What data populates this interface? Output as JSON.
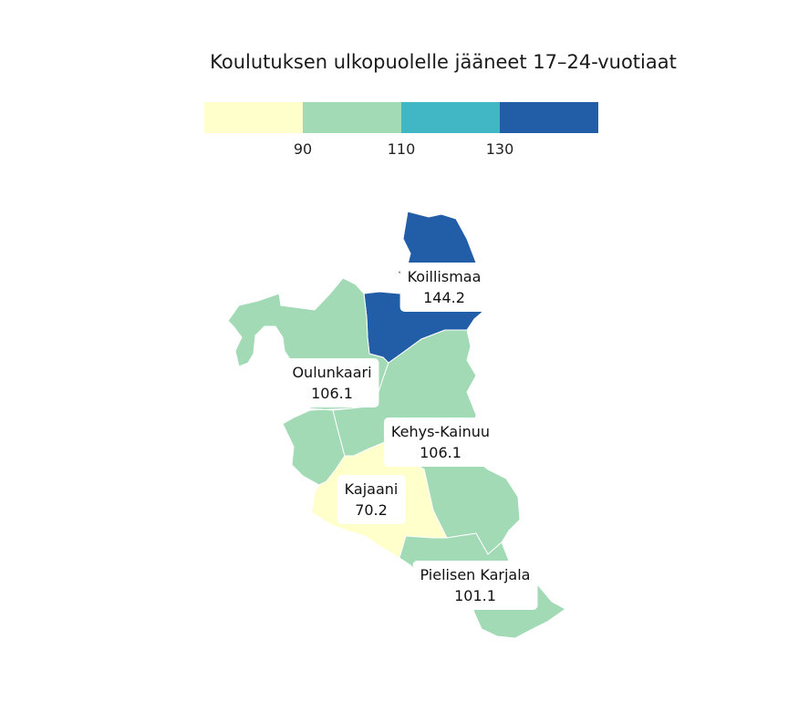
{
  "title": "Koulutuksen ulkopuolelle jääneet 17–24-vuotiaat",
  "legend": {
    "bins": [
      {
        "color": "#ffffcc"
      },
      {
        "color": "#a1dab4"
      },
      {
        "color": "#41b6c4"
      },
      {
        "color": "#225ea8"
      }
    ],
    "breaks": [
      "90",
      "110",
      "130"
    ]
  },
  "regions": [
    {
      "name": "Koillismaa",
      "value": "144.2",
      "color": "#225ea8"
    },
    {
      "name": "Oulunkaari",
      "value": "106.1",
      "color": "#a1dab4"
    },
    {
      "name": "Kehys-Kainuu",
      "value": "106.1",
      "color": "#a1dab4"
    },
    {
      "name": "Kajaani",
      "value": "70.2",
      "color": "#ffffcc"
    },
    {
      "name": "Pielisen Karjala",
      "value": "101.1",
      "color": "#a1dab4"
    }
  ]
}
